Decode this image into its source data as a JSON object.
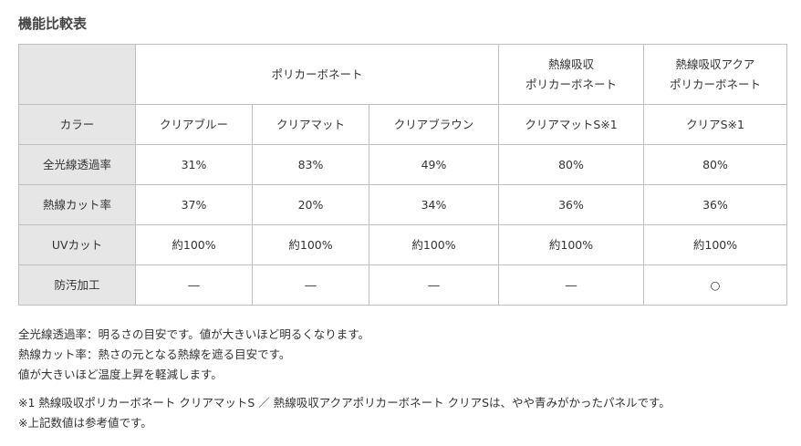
{
  "page": {
    "title": "機能比較表"
  },
  "table": {
    "group_headers": [
      "ポリカーボネート",
      "熱線吸収\nポリカーボネート",
      "熱線吸収アクア\nポリカーボネート"
    ],
    "columns": [
      "クリアブルー",
      "クリアマット",
      "クリアブラウン",
      "クリアマットS※1",
      "クリアS※1"
    ],
    "rows": [
      {
        "label": "カラー",
        "cells": [
          "クリアブルー",
          "クリアマット",
          "クリアブラウン",
          "クリアマットS※1",
          "クリアS※1"
        ]
      },
      {
        "label": "全光線透過率",
        "cells": [
          "31%",
          "83%",
          "49%",
          "80%",
          "80%"
        ]
      },
      {
        "label": "熱線カット率",
        "cells": [
          "37%",
          "20%",
          "34%",
          "36%",
          "36%"
        ]
      },
      {
        "label": "UVカット",
        "cells": [
          "約100%",
          "約100%",
          "約100%",
          "約100%",
          "約100%"
        ]
      },
      {
        "label": "防汚加工",
        "cells": [
          "―",
          "―",
          "―",
          "―",
          "○"
        ]
      }
    ]
  },
  "notes": {
    "line1": "全光線透過率：明るさの目安です。値が大きいほど明るくなります。",
    "line2": "熱線カット率：熱さの元となる熱線を遮る目安です。",
    "line3": "値が大きいほど温度上昇を軽減します。",
    "footnote1": "※1 熱線吸収ポリカーボネート クリアマットS ／ 熱線吸収アクアポリカーボネート クリアSは、やや青みがかったパネルです。",
    "footnote2": "※上記数値は参考値です。"
  }
}
